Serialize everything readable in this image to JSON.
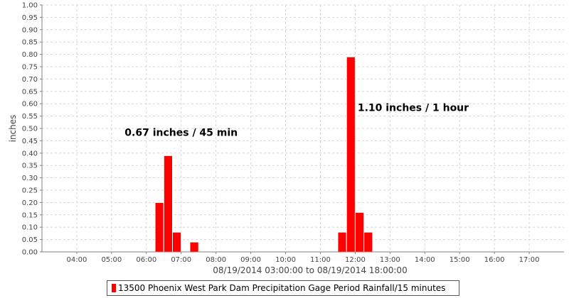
{
  "chart_data": {
    "type": "bar",
    "title": "",
    "xlabel": "08/19/2014 03:00:00 to 08/19/2014 18:00:00",
    "ylabel": "inches",
    "ylim": [
      0,
      1.0
    ],
    "yticks": [
      "0.00",
      "0.05",
      "0.10",
      "0.15",
      "0.20",
      "0.25",
      "0.30",
      "0.35",
      "0.40",
      "0.45",
      "0.50",
      "0.55",
      "0.60",
      "0.65",
      "0.70",
      "0.75",
      "0.80",
      "0.85",
      "0.90",
      "0.95",
      "1.00"
    ],
    "xlim": [
      "03:00",
      "18:00"
    ],
    "xticks": [
      "04:00",
      "05:00",
      "06:00",
      "07:00",
      "08:00",
      "09:00",
      "10:00",
      "11:00",
      "12:00",
      "13:00",
      "14:00",
      "15:00",
      "16:00",
      "17:00"
    ],
    "grid": true,
    "bar_color": "#ff0000",
    "series": [
      {
        "name": "13500 Phoenix West Park Dam Precipitation Gage Period Rainfall/15 minutes",
        "points": [
          {
            "x": "06:15",
            "y": 0.2
          },
          {
            "x": "06:30",
            "y": 0.39
          },
          {
            "x": "06:45",
            "y": 0.08
          },
          {
            "x": "07:15",
            "y": 0.04
          },
          {
            "x": "11:30",
            "y": 0.08
          },
          {
            "x": "11:45",
            "y": 0.79
          },
          {
            "x": "12:00",
            "y": 0.16
          },
          {
            "x": "12:15",
            "y": 0.08
          }
        ]
      }
    ],
    "annotations": [
      {
        "text": "0.67 inches / 45 min",
        "x": "07:00",
        "y": 0.47
      },
      {
        "text": "1.10 inches / 1 hour",
        "x": "13:40",
        "y": 0.57
      }
    ]
  }
}
